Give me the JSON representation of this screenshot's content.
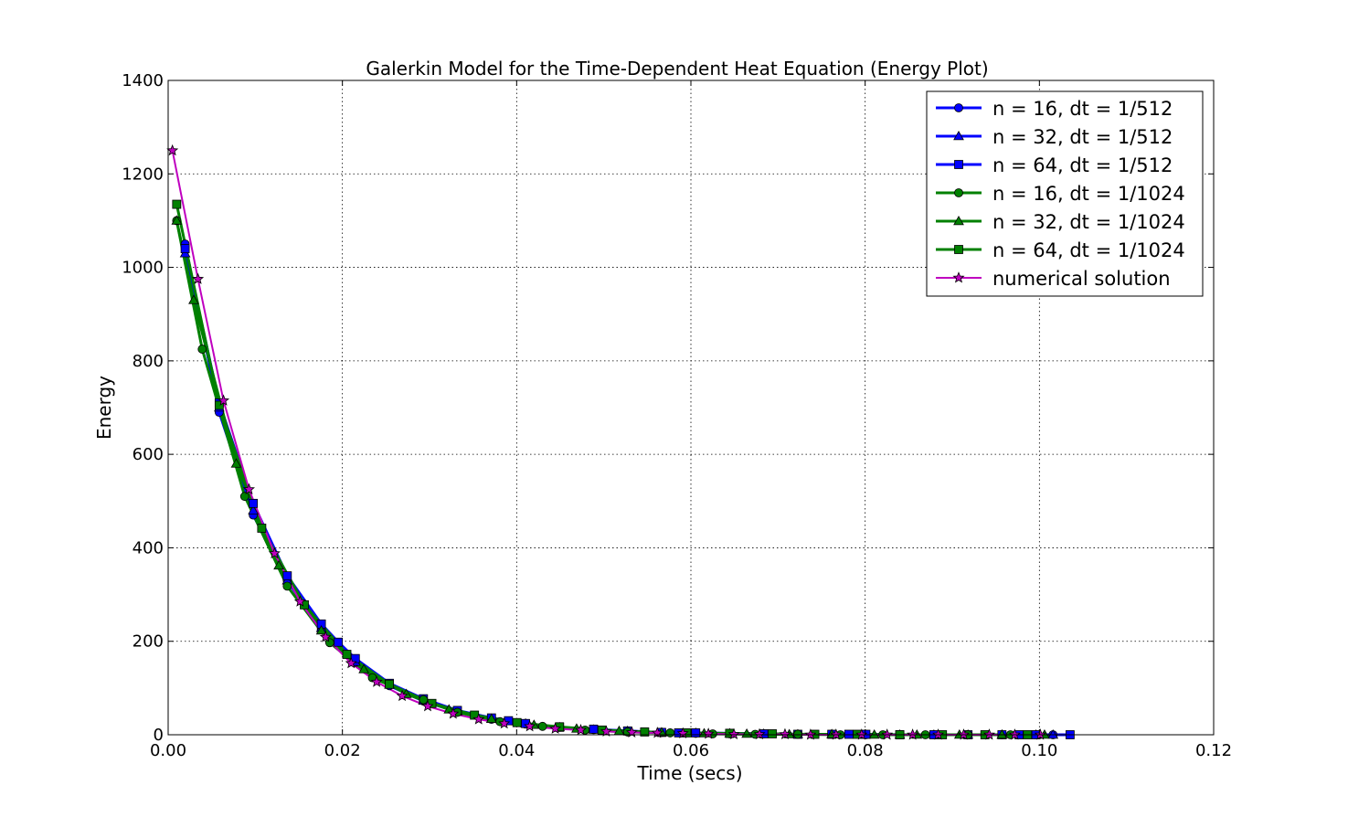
{
  "chart_data": {
    "type": "line",
    "title": "Galerkin Model for the Time-Dependent Heat Equation (Energy Plot)",
    "xlabel": "Time (secs)",
    "ylabel": "Energy",
    "xlim": [
      0.0,
      0.12
    ],
    "ylim": [
      0,
      1400
    ],
    "xticks": [
      "0.00",
      "0.02",
      "0.04",
      "0.06",
      "0.08",
      "0.10",
      "0.12"
    ],
    "yticks": [
      "0",
      "200",
      "400",
      "600",
      "800",
      "1000",
      "1200",
      "1400"
    ],
    "grid": true,
    "legend_position": "top-right",
    "series": [
      {
        "name": "n = 16, dt = 1/512",
        "color": "#0000ff",
        "marker": "circle",
        "lw": 3,
        "x": [
          0.00195,
          0.00586,
          0.00977,
          0.01367,
          0.01758,
          0.02148,
          0.02539,
          0.0293,
          0.0332,
          0.03711,
          0.04102,
          0.04492,
          0.04883,
          0.05273,
          0.05664,
          0.06055,
          0.06445,
          0.06836,
          0.07227,
          0.07617,
          0.08008,
          0.08398,
          0.08789,
          0.0918,
          0.0957,
          0.09961,
          0.10156
        ],
        "y": [
          1050,
          690,
          470,
          330,
          225,
          155,
          105,
          72,
          49,
          33,
          23,
          16,
          11,
          7,
          5,
          3,
          2,
          2,
          1,
          1,
          0,
          0,
          0,
          0,
          0,
          0,
          0
        ]
      },
      {
        "name": "n = 32, dt = 1/512",
        "color": "#0000ff",
        "marker": "triangle",
        "lw": 3,
        "x": [
          0.00195,
          0.00586,
          0.00977,
          0.01367,
          0.01758,
          0.02148,
          0.02539,
          0.0293,
          0.0332,
          0.03711,
          0.04102,
          0.04492,
          0.04883,
          0.05273,
          0.05664,
          0.06055,
          0.06445,
          0.06836,
          0.07227,
          0.07617,
          0.08008,
          0.08398,
          0.08789,
          0.0918,
          0.0957,
          0.09961,
          0.10156
        ],
        "y": [
          1030,
          700,
          480,
          330,
          228,
          156,
          107,
          73,
          50,
          34,
          24,
          16,
          11,
          8,
          5,
          4,
          3,
          2,
          1,
          1,
          0,
          0,
          0,
          0,
          0,
          0,
          0
        ]
      },
      {
        "name": "n = 64, dt = 1/512",
        "color": "#0000ff",
        "marker": "square",
        "lw": 3,
        "x": [
          0.00195,
          0.00586,
          0.00977,
          0.01367,
          0.01758,
          0.01953,
          0.02148,
          0.02539,
          0.0293,
          0.0332,
          0.03711,
          0.03906,
          0.04102,
          0.04492,
          0.04883,
          0.05273,
          0.05664,
          0.05859,
          0.06055,
          0.06445,
          0.06836,
          0.07227,
          0.07617,
          0.07813,
          0.08008,
          0.08398,
          0.08789,
          0.0918,
          0.0957,
          0.09766,
          0.09961,
          0.10352
        ],
        "y": [
          1040,
          710,
          495,
          340,
          237,
          198,
          163,
          110,
          77,
          52,
          36,
          30,
          24,
          16,
          12,
          8,
          5,
          4,
          4,
          3,
          2,
          1,
          1,
          1,
          1,
          0,
          0,
          0,
          0,
          0,
          0,
          0
        ]
      },
      {
        "name": "n = 16, dt = 1/1024",
        "color": "#008000",
        "marker": "circle",
        "lw": 3,
        "x": [
          0.00098,
          0.00391,
          0.00879,
          0.01367,
          0.01855,
          0.02344,
          0.0293,
          0.0332,
          0.03809,
          0.04297,
          0.04785,
          0.05273,
          0.05762,
          0.0625,
          0.06738,
          0.07227,
          0.07715,
          0.08203,
          0.08691,
          0.0918,
          0.09668
        ],
        "y": [
          1100,
          825,
          510,
          318,
          197,
          122,
          75,
          48,
          28,
          18,
          10,
          6,
          4,
          2,
          1,
          1,
          0,
          0,
          0,
          0,
          0
        ]
      },
      {
        "name": "n = 32, dt = 1/1024",
        "color": "#008000",
        "marker": "triangle",
        "lw": 3,
        "x": [
          0.00098,
          0.00293,
          0.00781,
          0.0127,
          0.01758,
          0.02246,
          0.02734,
          0.03223,
          0.03711,
          0.04199,
          0.04688,
          0.05176,
          0.05664,
          0.06152,
          0.06641,
          0.07129,
          0.07617,
          0.08105,
          0.08594,
          0.09082,
          0.0957,
          0.10059
        ],
        "y": [
          1100,
          930,
          580,
          362,
          223,
          140,
          87,
          54,
          34,
          21,
          13,
          8,
          5,
          3,
          2,
          1,
          1,
          0,
          0,
          0,
          0,
          0
        ]
      },
      {
        "name": "n = 64, dt = 1/1024",
        "color": "#008000",
        "marker": "square",
        "lw": 3,
        "x": [
          0.00098,
          0.00586,
          0.01074,
          0.01563,
          0.02051,
          0.02539,
          0.03027,
          0.03516,
          0.04004,
          0.04492,
          0.0498,
          0.05469,
          0.05957,
          0.06445,
          0.06934,
          0.07422,
          0.0791,
          0.08398,
          0.08887,
          0.09375,
          0.09863
        ],
        "y": [
          1135,
          705,
          442,
          278,
          172,
          108,
          67,
          42,
          26,
          17,
          10,
          6,
          4,
          3,
          2,
          1,
          1,
          0,
          0,
          0,
          0
        ]
      },
      {
        "name": "numerical solution",
        "color": "#bf00bf",
        "marker": "star",
        "lw": 2,
        "x": [
          0.00049,
          0.00342,
          0.00635,
          0.00928,
          0.01221,
          0.01514,
          0.01807,
          0.021,
          0.02393,
          0.02686,
          0.02979,
          0.03271,
          0.03564,
          0.03857,
          0.0415,
          0.04443,
          0.04736,
          0.05029,
          0.05322,
          0.05615,
          0.05908,
          0.06201,
          0.06494,
          0.06787,
          0.0708,
          0.07373,
          0.07666,
          0.07959,
          0.08252,
          0.08545,
          0.08838,
          0.09131,
          0.09424,
          0.09717,
          0.1001
        ],
        "y": [
          1250,
          975,
          715,
          525,
          388,
          285,
          209,
          153,
          113,
          83,
          61,
          45,
          33,
          24,
          18,
          13,
          10,
          7,
          5,
          4,
          3,
          2,
          1,
          1,
          1,
          0,
          0,
          0,
          0,
          0,
          0,
          0,
          0,
          0,
          0
        ]
      }
    ]
  }
}
